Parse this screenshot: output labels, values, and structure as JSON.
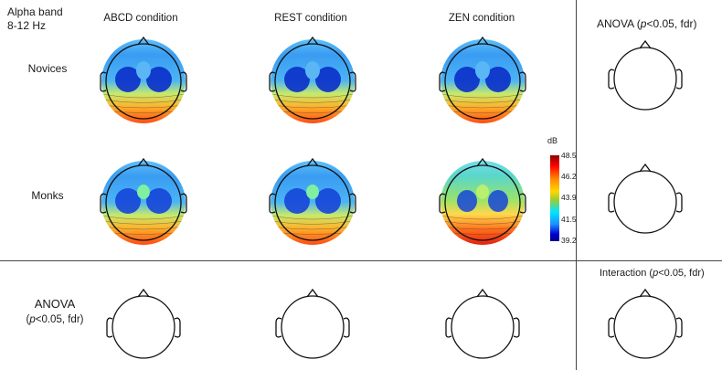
{
  "band": {
    "line1": "Alpha band",
    "line2": "8-12 Hz"
  },
  "columns": [
    "ABCD condition",
    "REST condition",
    "ZEN condition"
  ],
  "rows": [
    "Novices",
    "Monks"
  ],
  "anova_right": {
    "pre": "ANOVA (",
    "p": "p",
    "post": "<0.05, fdr)"
  },
  "interaction": {
    "pre": "Interaction (",
    "p": "p",
    "post": "<0.05, fdr)"
  },
  "anova_bottom": {
    "line1": "ANOVA",
    "pre": "(",
    "p": "p",
    "post": "<0.05, fdr)"
  },
  "colorbar": {
    "unit": "dB",
    "ticks": [
      "48.5",
      "46.2",
      "43.9",
      "41.5",
      "39.2"
    ]
  }
}
